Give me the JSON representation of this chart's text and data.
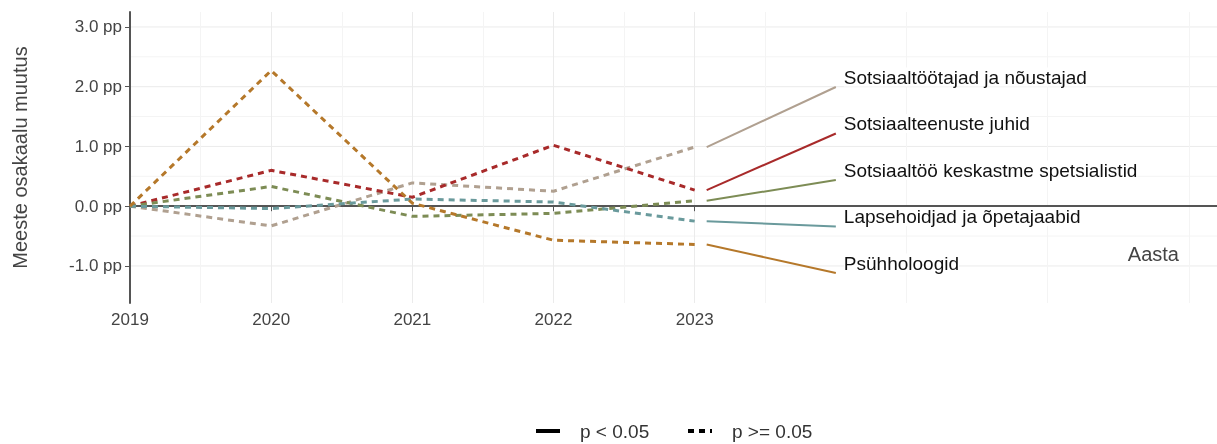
{
  "chart_data": {
    "type": "line",
    "xlabel": "Aasta",
    "ylabel": "Meeste osakaalu muutus",
    "x": [
      2019,
      2020,
      2021,
      2022,
      2023
    ],
    "xlim": [
      2019,
      2026.7
    ],
    "xticks": [
      2019,
      2020,
      2021,
      2022,
      2023
    ],
    "ylim": [
      -1.62,
      3.25
    ],
    "yticks": [
      {
        "value": -1,
        "label": "-1.0 pp"
      },
      {
        "value": 0,
        "label": "0.0 pp"
      },
      {
        "value": 1,
        "label": "1.0 pp"
      },
      {
        "value": 2,
        "label": "2.0 pp"
      },
      {
        "value": 3,
        "label": "3.0 pp"
      }
    ],
    "grid": true,
    "line_style": "dashed",
    "marker": "none",
    "annotations": [
      "p < 0.05",
      "p >= 0.05"
    ],
    "series": [
      {
        "name": "Sotsiaaltöötajad ja nõustajad",
        "color": "#b0a090",
        "values": [
          0,
          -0.33,
          0.39,
          0.25,
          0.99
        ]
      },
      {
        "name": "Sotsiaalteenuste juhid",
        "color": "#a82a2a",
        "values": [
          0,
          0.6,
          0.15,
          1.02,
          0.27
        ]
      },
      {
        "name": "Sotsiaaltöö keskastme spetsialistid",
        "color": "#7d8c55",
        "values": [
          0,
          0.33,
          -0.17,
          -0.12,
          0.09
        ]
      },
      {
        "name": "Lapsehoidjad ja õpetajaabid",
        "color": "#6a9a9c",
        "values": [
          0,
          -0.04,
          0.12,
          0.07,
          -0.25
        ]
      },
      {
        "name": "Psühholoogid",
        "color": "#b5782a",
        "values": [
          0,
          2.27,
          0.05,
          -0.57,
          -0.64
        ]
      }
    ]
  }
}
